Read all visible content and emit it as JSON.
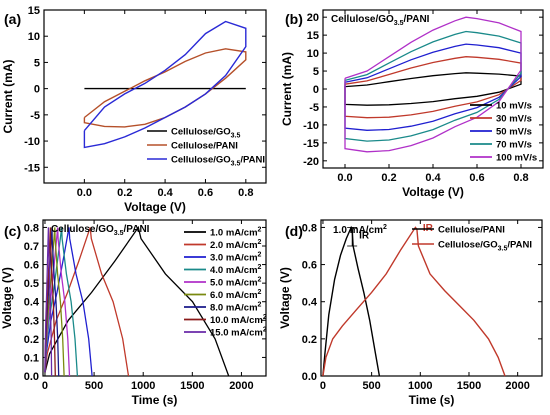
{
  "chart_data": [
    {
      "type": "line",
      "panel": "(a)",
      "xlabel": "Voltage (V)",
      "ylabel": "Current (mA)",
      "xlim": [
        -0.2,
        0.9
      ],
      "ylim": [
        -18,
        15
      ],
      "xticks": [
        0.0,
        0.2,
        0.4,
        0.6,
        0.8
      ],
      "yticks": [
        -15,
        -10,
        -5,
        0,
        5,
        10,
        15
      ],
      "legend_position": "bottom-right",
      "series": [
        {
          "name": "Cellulose/GO",
          "name_sub": "3.5",
          "color": "#000000",
          "x": [
            0.0,
            0.8
          ],
          "y": [
            0.0,
            0.0
          ]
        },
        {
          "name": "Cellulose/PANI",
          "color": "#b5502a",
          "x": [
            0.0,
            0.1,
            0.2,
            0.3,
            0.4,
            0.5,
            0.6,
            0.7,
            0.8,
            0.8,
            0.7,
            0.6,
            0.5,
            0.4,
            0.3,
            0.2,
            0.1,
            0.0,
            0.0
          ],
          "y": [
            -5.5,
            -2.5,
            -0.5,
            1.5,
            3.2,
            5.2,
            6.8,
            7.6,
            7.0,
            5.5,
            2.0,
            -1.0,
            -3.5,
            -5.5,
            -6.8,
            -7.3,
            -7.2,
            -6.5,
            -5.5
          ]
        },
        {
          "name": "Cellulose/GO",
          "name_sub": "3.5",
          "name_suffix": "/PANI",
          "color": "#2a2ad6",
          "x": [
            0.0,
            0.1,
            0.2,
            0.3,
            0.4,
            0.5,
            0.6,
            0.7,
            0.8,
            0.8,
            0.7,
            0.6,
            0.5,
            0.4,
            0.3,
            0.2,
            0.1,
            0.0,
            0.0
          ],
          "y": [
            -8.0,
            -3.5,
            -1.0,
            1.0,
            3.5,
            6.5,
            10.5,
            12.8,
            11.5,
            8.0,
            2.5,
            -1.0,
            -3.5,
            -5.5,
            -7.5,
            -9.2,
            -10.5,
            -11.2,
            -8.0
          ]
        }
      ]
    },
    {
      "type": "line",
      "panel": "(b)",
      "annotation": "Cellulose/GO",
      "annotation_sub": "3.5",
      "annotation_suffix": "/PANI",
      "xlabel": "Voltage (V)",
      "ylabel": "Current (mA)",
      "xlim": [
        -0.1,
        0.9
      ],
      "ylim": [
        -22,
        22
      ],
      "xticks": [
        0.0,
        0.2,
        0.4,
        0.6,
        0.8
      ],
      "yticks": [
        -20,
        -15,
        -10,
        -5,
        0,
        5,
        10,
        15,
        20
      ],
      "legend_position": "bottom-right",
      "series": [
        {
          "name": "10 mV/s",
          "color": "#000000",
          "top_peak": 4.5,
          "bottom_peak": -4.5
        },
        {
          "name": "30 mV/s",
          "color": "#c0392b",
          "top_peak": 9.0,
          "bottom_peak": -8.0
        },
        {
          "name": "50 mV/s",
          "color": "#1f1fd0",
          "top_peak": 12.5,
          "bottom_peak": -11.5
        },
        {
          "name": "70 mV/s",
          "color": "#1a8a8a",
          "top_peak": 16.0,
          "bottom_peak": -14.5
        },
        {
          "name": "100 mV/s",
          "color": "#b030c8",
          "top_peak": 20.0,
          "bottom_peak": -17.5
        }
      ]
    },
    {
      "type": "line",
      "panel": "(c)",
      "annotation": "Cellulose/GO",
      "annotation_sub": "3.5",
      "annotation_suffix": "/PANI",
      "xlabel": "Time (s)",
      "ylabel": "Voltage (V)",
      "xlim": [
        -20,
        2250
      ],
      "ylim": [
        0,
        0.84
      ],
      "xticks": [
        0,
        500,
        1000,
        1500,
        2000
      ],
      "yticks": [
        0.0,
        0.1,
        0.2,
        0.3,
        0.4,
        0.5,
        0.6,
        0.7,
        0.8
      ],
      "legend_position": "right",
      "series": [
        {
          "name": "1.0 mA/cm",
          "name_sup": "2",
          "color": "#000000",
          "charge_end": 950,
          "discharge_end": 1870
        },
        {
          "name": "2.0 mA/cm",
          "name_sup": "2",
          "color": "#c0392b",
          "charge_end": 460,
          "discharge_end": 850
        },
        {
          "name": "3.0 mA/cm",
          "name_sup": "2",
          "color": "#1f1fd0",
          "charge_end": 245,
          "discharge_end": 480
        },
        {
          "name": "4.0 mA/cm",
          "name_sup": "2",
          "color": "#1a8a8a",
          "charge_end": 170,
          "discharge_end": 330
        },
        {
          "name": "5.0 mA/cm",
          "name_sup": "2",
          "color": "#b030c8",
          "charge_end": 130,
          "discharge_end": 250
        },
        {
          "name": "6.0 mA/cm",
          "name_sup": "2",
          "color": "#7a8a10",
          "charge_end": 100,
          "discharge_end": 195
        },
        {
          "name": "8.0 mA/cm",
          "name_sup": "2",
          "color": "#1a1a8a",
          "charge_end": 72,
          "discharge_end": 140
        },
        {
          "name": "10.0 mA/cm",
          "name_sup": "2",
          "color": "#8a1a1a",
          "charge_end": 55,
          "discharge_end": 105
        },
        {
          "name": "15.0 mA/cm",
          "name_sup": "2",
          "color": "#6a2aa8",
          "charge_end": 35,
          "discharge_end": 68
        }
      ]
    },
    {
      "type": "line",
      "panel": "(d)",
      "annotation": "1.0 mA/cm",
      "annotation_sup": "2",
      "ir_label": "IR",
      "xlabel": "Time (s)",
      "ylabel": "Voltage (V)",
      "xlim": [
        -20,
        2250
      ],
      "ylim": [
        0,
        0.84
      ],
      "xticks": [
        0,
        500,
        1000,
        1500,
        2000
      ],
      "yticks": [
        0.0,
        0.2,
        0.4,
        0.6,
        0.8
      ],
      "legend_position": "top-right",
      "series": [
        {
          "name": "Cellulose/PANI",
          "color": "#000000",
          "x": [
            0,
            20,
            60,
            120,
            180,
            240,
            290,
            300,
            310,
            360,
            420,
            480,
            540,
            580
          ],
          "y": [
            0.0,
            0.12,
            0.33,
            0.52,
            0.65,
            0.74,
            0.8,
            0.79,
            0.7,
            0.58,
            0.45,
            0.3,
            0.12,
            0.0
          ]
        },
        {
          "name": "Cellulose/GO",
          "name_sub": "3.5",
          "name_suffix": "/PANI",
          "color": "#c0392b",
          "x": [
            0,
            30,
            100,
            200,
            350,
            500,
            650,
            800,
            950,
            965,
            980,
            1100,
            1250,
            1400,
            1550,
            1700,
            1800,
            1870
          ],
          "y": [
            0.0,
            0.1,
            0.2,
            0.27,
            0.36,
            0.45,
            0.55,
            0.68,
            0.8,
            0.79,
            0.7,
            0.55,
            0.46,
            0.38,
            0.3,
            0.2,
            0.1,
            0.0
          ]
        }
      ]
    }
  ]
}
